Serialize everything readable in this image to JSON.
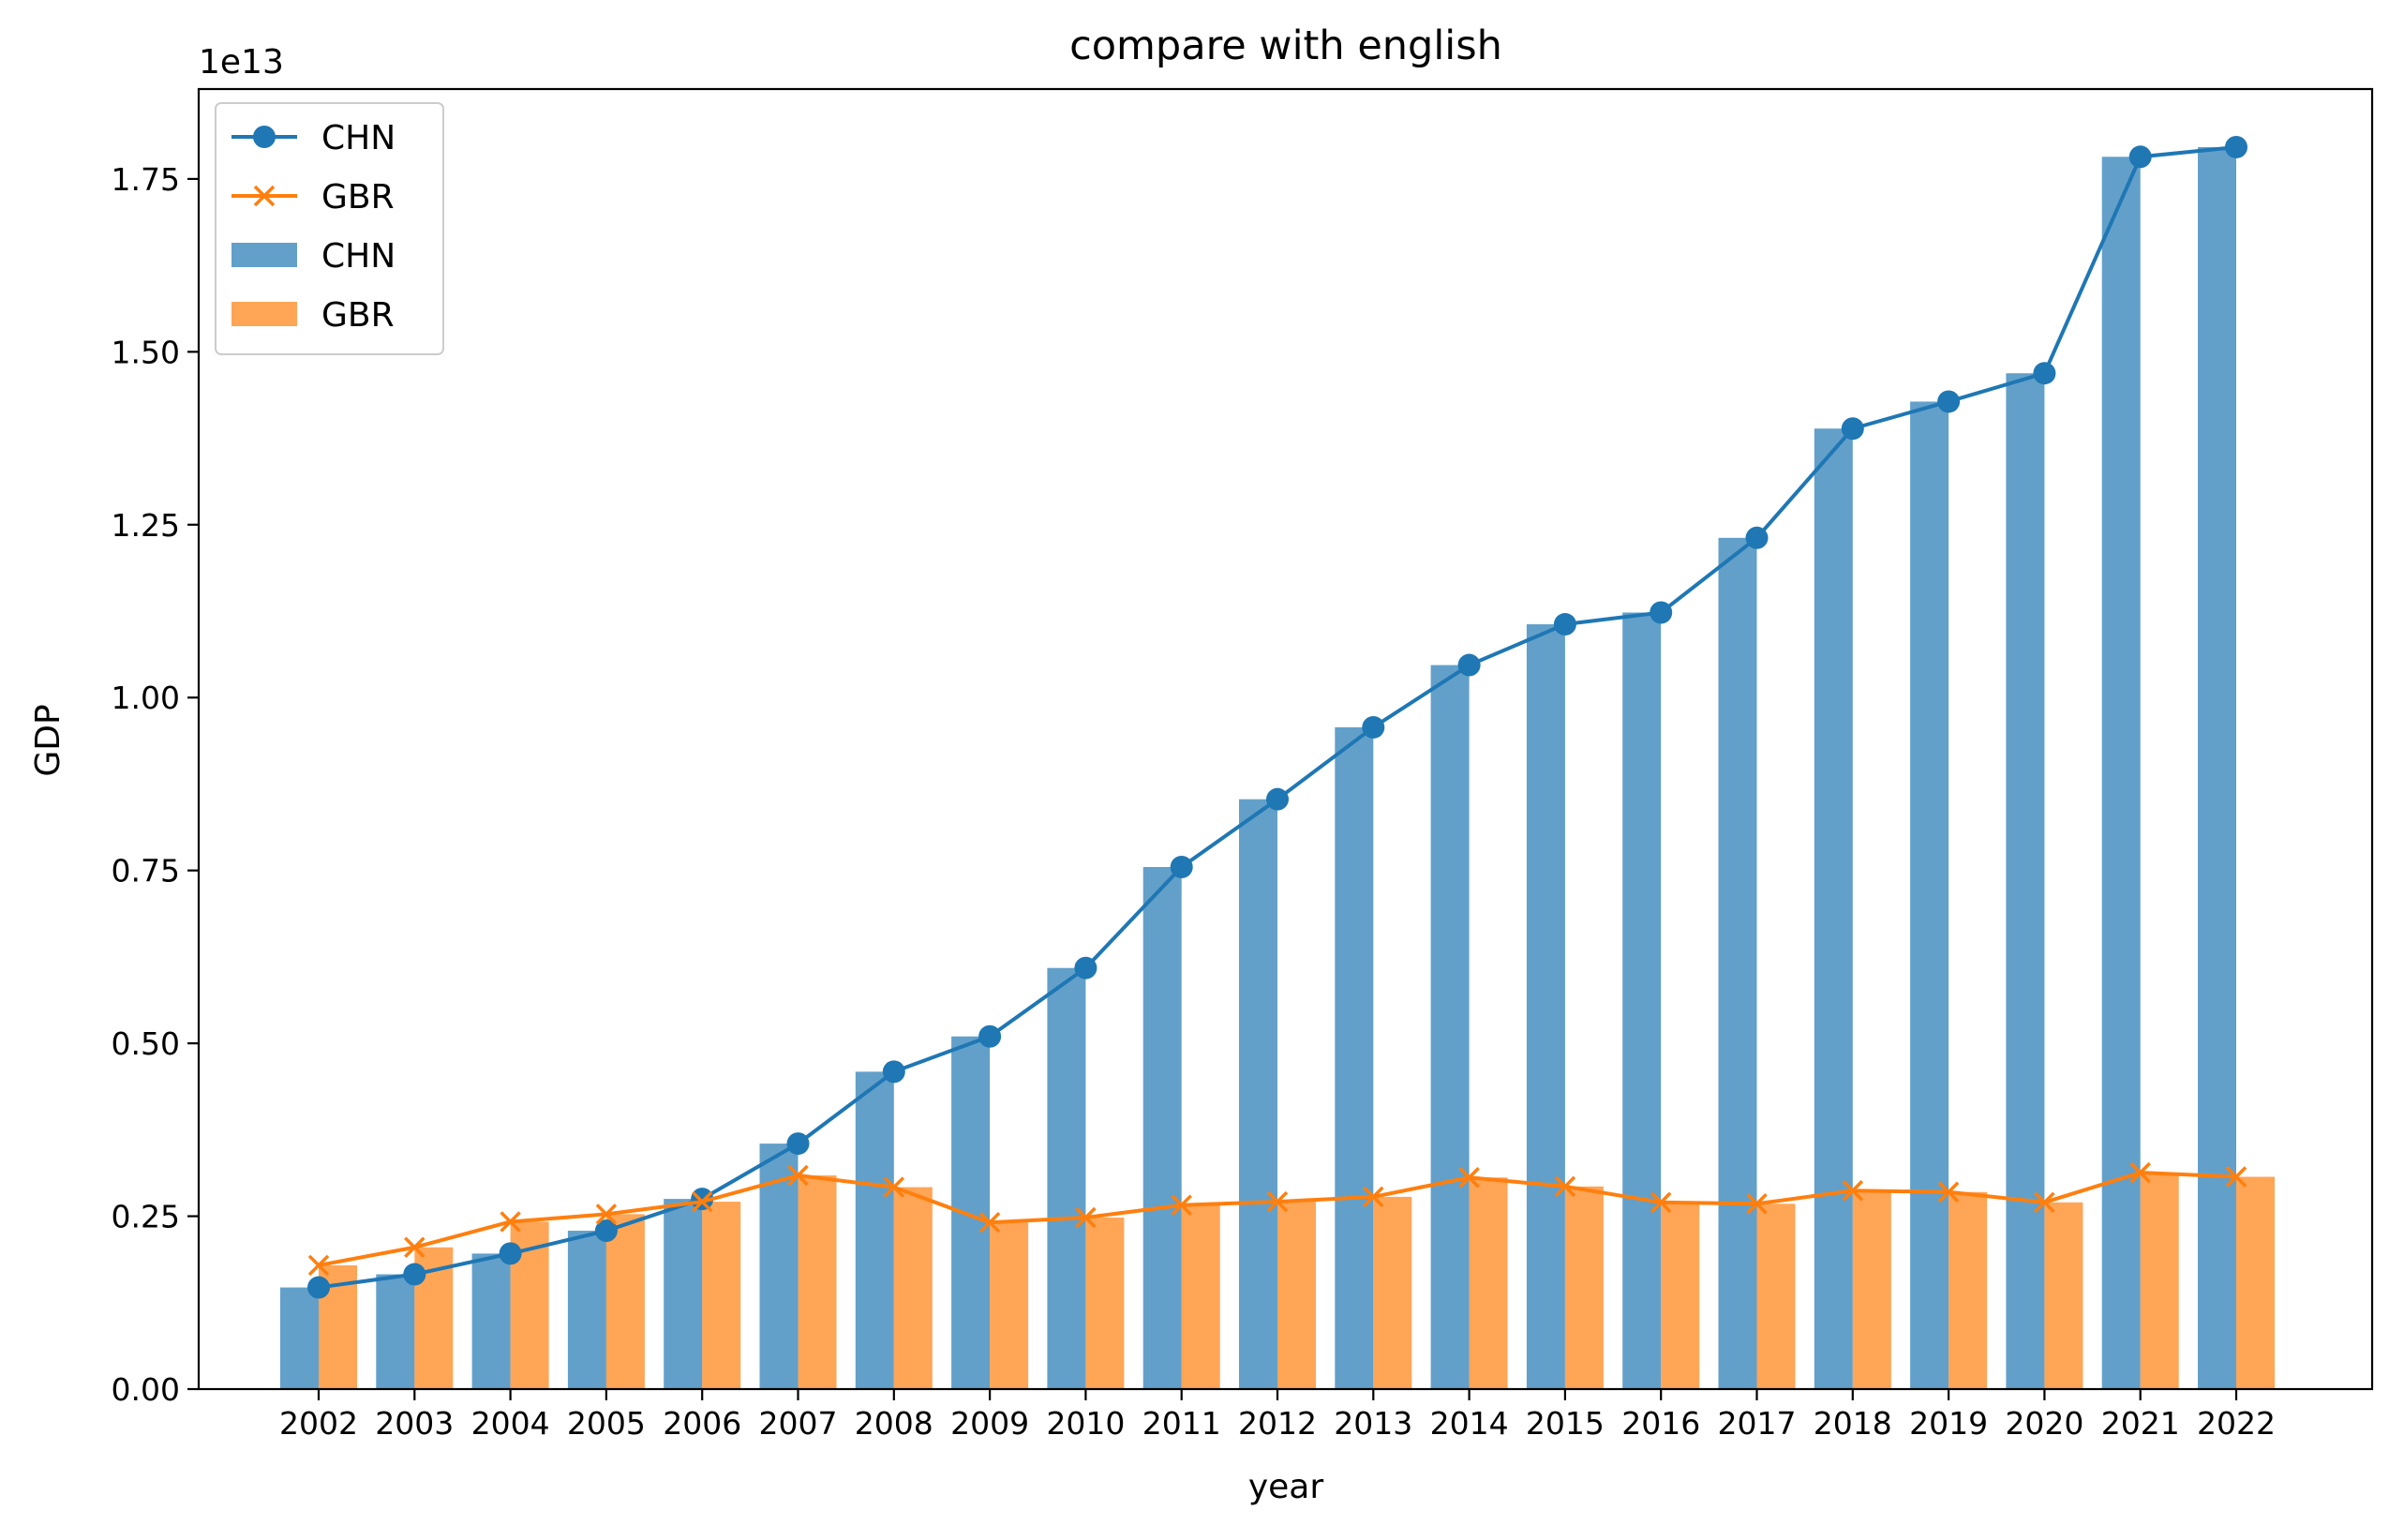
{
  "chart_data": {
    "type": "bar",
    "title": "compare with english",
    "xlabel": "year",
    "ylabel": "GDP",
    "y_offset_label": "1e13",
    "ylim": [
      0,
      1.88
    ],
    "y_ticks": [
      0.0,
      0.25,
      0.5,
      0.75,
      1.0,
      1.25,
      1.5,
      1.75
    ],
    "y_tick_labels": [
      "0.00",
      "0.25",
      "0.50",
      "0.75",
      "1.00",
      "1.25",
      "1.50",
      "1.75"
    ],
    "categories": [
      "2002",
      "2003",
      "2004",
      "2005",
      "2006",
      "2007",
      "2008",
      "2009",
      "2010",
      "2011",
      "2012",
      "2013",
      "2014",
      "2015",
      "2016",
      "2017",
      "2018",
      "2019",
      "2020",
      "2021",
      "2022"
    ],
    "series": [
      {
        "name": "CHN",
        "color": "#1f77b4",
        "line_marker": "circle",
        "bar_alpha": 0.7,
        "values": [
          0.147,
          0.166,
          0.196,
          0.229,
          0.275,
          0.355,
          0.459,
          0.51,
          0.609,
          0.755,
          0.853,
          0.957,
          1.047,
          1.106,
          1.123,
          1.231,
          1.389,
          1.428,
          1.469,
          1.782,
          1.796
        ]
      },
      {
        "name": "GBR",
        "color": "#ff7f0e",
        "line_marker": "x",
        "bar_alpha": 0.7,
        "values": [
          0.179,
          0.205,
          0.242,
          0.253,
          0.271,
          0.309,
          0.292,
          0.241,
          0.248,
          0.266,
          0.271,
          0.278,
          0.306,
          0.293,
          0.27,
          0.268,
          0.287,
          0.285,
          0.27,
          0.313,
          0.307
        ]
      }
    ],
    "legend": {
      "placement": "top-left",
      "entries": [
        {
          "label": "CHN",
          "kind": "line",
          "series": 0
        },
        {
          "label": "GBR",
          "kind": "line",
          "series": 1
        },
        {
          "label": "CHN",
          "kind": "bar",
          "series": 0
        },
        {
          "label": "GBR",
          "kind": "bar",
          "series": 1
        }
      ]
    },
    "grid": false
  }
}
